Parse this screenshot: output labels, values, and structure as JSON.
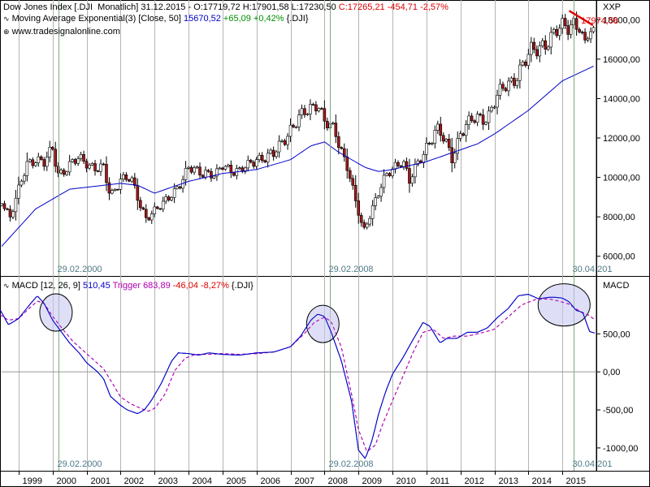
{
  "colors": {
    "bullish": "#ffffff",
    "bearish": "#a01818",
    "wick": "#000000",
    "ema": "#0000c8",
    "macd": "#0000c8",
    "trigger": "#b000b0",
    "grid": "#b4b4b4",
    "markerline": "#7faa7f",
    "highlight": "#e00000",
    "circle_fill": "#c8c8f0"
  },
  "header": {
    "line1": {
      "title": "Dow Jones Index [.DJI  Monatlich] 31.12.2015 - ",
      "ohlc": "O:17719,72 H:17901,58 L:17230,50 ",
      "close": "C:17265,21 -454,71 -2,57%"
    },
    "line2": {
      "prefix": "Moving Average Exponential(3) [Close, 50] ",
      "value": "15670,52 ",
      "change": "+65,09 +0,42% ",
      "suffix": "{.DJI}"
    },
    "line3": "www.tradesignalonline.com"
  },
  "macd_header": {
    "prefix": "MACD [12, 26, 9] ",
    "macd": "510,45 ",
    "trigger_label": "Trigger ",
    "trigger": "683,89 ",
    "change": "-46,04 -8,27% ",
    "suffix": "{.DJI}"
  },
  "chart_data": [
    {
      "type": "candlestick",
      "title": "Dow Jones Index [.DJI Monatlich]",
      "axis_label": "XXP",
      "ylim": [
        5000,
        19000
      ],
      "y_ticks": [
        "18000,00",
        "16000,00",
        "14000,00",
        "12000,00",
        "10000,00",
        "8000,00",
        "6000,00"
      ],
      "y_tick_values": [
        18000,
        16000,
        14000,
        12000,
        10000,
        8000,
        6000
      ],
      "xlim": [
        1998.5,
        2016.0
      ],
      "x_ticks": [
        "1999",
        "2000",
        "2001",
        "2002",
        "2003",
        "2004",
        "2005",
        "2006",
        "2007",
        "2008",
        "2009",
        "2010",
        "2011",
        "2012",
        "2013",
        "2014",
        "2015"
      ],
      "x_tick_values": [
        1999,
        2000,
        2001,
        2002,
        2003,
        2004,
        2005,
        2006,
        2007,
        2008,
        2009,
        2010,
        2011,
        2012,
        2013,
        2014,
        2015
      ],
      "grid": "vertical",
      "close_x": [
        1998.5,
        1998.75,
        1999.0,
        1999.25,
        1999.5,
        1999.75,
        2000.0,
        2000.17,
        2000.5,
        2000.75,
        2001.0,
        2001.25,
        2001.5,
        2001.7,
        2002.0,
        2002.3,
        2002.55,
        2002.75,
        2003.0,
        2003.2,
        2003.5,
        2003.8,
        2004.0,
        2004.5,
        2004.8,
        2005.0,
        2005.5,
        2005.8,
        2006.0,
        2006.5,
        2007.0,
        2007.4,
        2007.8,
        2008.0,
        2008.3,
        2008.5,
        2008.7,
        2008.9,
        2009.15,
        2009.4,
        2009.7,
        2010.0,
        2010.3,
        2010.5,
        2010.8,
        2011.0,
        2011.3,
        2011.6,
        2011.75,
        2012.0,
        2012.3,
        2012.5,
        2012.8,
        2013.0,
        2013.3,
        2013.6,
        2013.9,
        2014.1,
        2014.4,
        2014.7,
        2014.9,
        2015.1,
        2015.3,
        2015.5,
        2015.65,
        2015.8,
        2015.95
      ],
      "close_y": [
        8900,
        8000,
        9300,
        10700,
        11000,
        10700,
        11400,
        10200,
        10600,
        10900,
        10800,
        10500,
        10400,
        9000,
        10000,
        9900,
        8700,
        8000,
        8300,
        8500,
        9200,
        9800,
        10400,
        10300,
        10000,
        10600,
        10300,
        10600,
        11000,
        11100,
        12500,
        13200,
        13900,
        12800,
        12300,
        11400,
        10500,
        8800,
        7200,
        8500,
        9700,
        10400,
        11000,
        9800,
        10800,
        11600,
        12500,
        11600,
        11000,
        12300,
        12800,
        13000,
        13100,
        13800,
        14600,
        15100,
        15800,
        16400,
        16800,
        17000,
        17500,
        17800,
        17900,
        17600,
        16400,
        17600,
        17265
      ],
      "ema_x": [
        1998.5,
        1999.5,
        2000.5,
        2001.5,
        2002.0,
        2002.5,
        2003.0,
        2003.5,
        2004.0,
        2005.0,
        2006.0,
        2007.0,
        2007.6,
        2008.0,
        2008.4,
        2008.8,
        2009.2,
        2009.6,
        2010.0,
        2010.5,
        2011.0,
        2011.5,
        2012.0,
        2012.5,
        2013.0,
        2014.0,
        2015.0,
        2015.95
      ],
      "ema_y": [
        6500,
        8400,
        9400,
        9600,
        9700,
        9600,
        9200,
        9500,
        9800,
        10200,
        10400,
        10900,
        11600,
        11800,
        11300,
        10900,
        10500,
        10300,
        10400,
        10600,
        10800,
        11100,
        11400,
        11700,
        12200,
        13400,
        14900,
        15670
      ],
      "callout_label": "17974,58",
      "callout_value": 17974.58,
      "trendline": [
        [
          2015.2,
          18450
        ],
        [
          2015.9,
          17720
        ]
      ],
      "markers": [
        {
          "x": 2000.17,
          "label": "29.02.2000"
        },
        {
          "x": 2008.17,
          "label": "29.02.2008"
        },
        {
          "x": 2015.33,
          "label": "30.04.201"
        }
      ]
    },
    {
      "type": "line",
      "title": "MACD [12, 26, 9]",
      "axis_label": "MACD",
      "ylim": [
        -1300,
        1250
      ],
      "y_ticks": [
        "500,00",
        "0,00",
        "-500,00",
        "-1000,00"
      ],
      "y_tick_values": [
        500,
        0,
        -500,
        -1000
      ],
      "series": [
        {
          "name": "MACD",
          "x": [
            1998.45,
            1998.7,
            1999.0,
            1999.3,
            1999.55,
            1999.75,
            2000.0,
            2000.2,
            2000.5,
            2000.8,
            2001.0,
            2001.3,
            2001.5,
            2001.7,
            2002.0,
            2002.2,
            2002.5,
            2002.7,
            2002.9,
            2003.2,
            2003.5,
            2003.7,
            2004.0,
            2004.3,
            2004.6,
            2005.0,
            2005.5,
            2006.0,
            2006.5,
            2007.0,
            2007.3,
            2007.6,
            2007.8,
            2008.0,
            2008.2,
            2008.5,
            2008.8,
            2009.0,
            2009.2,
            2009.4,
            2009.6,
            2009.8,
            2010.0,
            2010.3,
            2010.6,
            2010.9,
            2011.1,
            2011.4,
            2011.6,
            2011.9,
            2012.2,
            2012.5,
            2012.8,
            2013.1,
            2013.4,
            2013.7,
            2014.0,
            2014.3,
            2014.6,
            2014.8,
            2015.0,
            2015.2,
            2015.4,
            2015.6,
            2015.8,
            2015.95
          ],
          "y": [
            820,
            620,
            700,
            870,
            1000,
            900,
            680,
            560,
            380,
            240,
            120,
            10,
            -90,
            -320,
            -440,
            -500,
            -550,
            -500,
            -380,
            -150,
            140,
            250,
            240,
            220,
            250,
            230,
            220,
            250,
            260,
            330,
            470,
            680,
            760,
            730,
            520,
            140,
            -390,
            -1030,
            -1140,
            -900,
            -540,
            -260,
            -30,
            180,
            420,
            650,
            600,
            380,
            440,
            440,
            520,
            520,
            580,
            720,
            830,
            1000,
            1020,
            960,
            980,
            980,
            970,
            920,
            810,
            780,
            530,
            510
          ]
        },
        {
          "name": "Trigger",
          "x": [
            1998.45,
            1998.7,
            1999.0,
            1999.3,
            1999.55,
            1999.75,
            2000.0,
            2000.3,
            2000.6,
            2000.9,
            2001.2,
            2001.5,
            2001.8,
            2002.0,
            2002.3,
            2002.6,
            2002.8,
            2003.0,
            2003.3,
            2003.6,
            2003.9,
            2004.2,
            2004.6,
            2005.0,
            2005.5,
            2006.0,
            2006.5,
            2007.0,
            2007.4,
            2007.7,
            2008.0,
            2008.2,
            2008.5,
            2008.8,
            2009.0,
            2009.25,
            2009.5,
            2009.7,
            2010.0,
            2010.3,
            2010.6,
            2010.9,
            2011.2,
            2011.5,
            2011.8,
            2012.2,
            2012.6,
            2013.0,
            2013.4,
            2013.8,
            2014.2,
            2014.6,
            2014.9,
            2015.2,
            2015.5,
            2015.8,
            2015.95
          ],
          "y": [
            750,
            680,
            700,
            830,
            930,
            900,
            730,
            560,
            400,
            280,
            160,
            40,
            -180,
            -330,
            -420,
            -480,
            -520,
            -480,
            -300,
            20,
            180,
            230,
            230,
            240,
            230,
            240,
            260,
            330,
            500,
            650,
            720,
            660,
            320,
            -300,
            -760,
            -1050,
            -960,
            -700,
            -380,
            -70,
            250,
            520,
            560,
            440,
            470,
            470,
            510,
            560,
            720,
            880,
            950,
            960,
            930,
            890,
            800,
            740,
            683
          ]
        }
      ],
      "circles": [
        {
          "x": 2000.1,
          "y": 780
        },
        {
          "x": 2007.95,
          "y": 630
        },
        {
          "x": 2015.05,
          "y": 880
        }
      ],
      "markers": [
        {
          "x": 2000.17,
          "label": "29.02.2000"
        },
        {
          "x": 2008.17,
          "label": "29.02.2008"
        },
        {
          "x": 2015.33,
          "label": "30.04.201"
        }
      ]
    }
  ]
}
